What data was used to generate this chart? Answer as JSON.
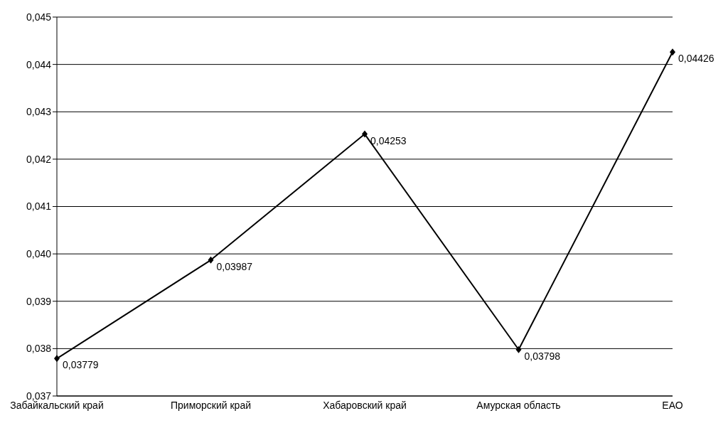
{
  "chart_data": {
    "type": "line",
    "categories": [
      "Забайкальский край",
      "Приморский край",
      "Хабаровский край",
      "Амурская область",
      "ЕАО"
    ],
    "values": [
      0.03779,
      0.03987,
      0.04253,
      0.03798,
      0.04426
    ],
    "value_labels": [
      "0,03779",
      "0,03987",
      "0,04253",
      "0,03798",
      "0,04426"
    ],
    "color": "#000000",
    "ylim": [
      0.037,
      0.045
    ],
    "yticks": [
      {
        "value": 0.037,
        "label": "0,037"
      },
      {
        "value": 0.038,
        "label": "0,038"
      },
      {
        "value": 0.039,
        "label": "0,039"
      },
      {
        "value": 0.04,
        "label": "0,040"
      },
      {
        "value": 0.041,
        "label": "0,041"
      },
      {
        "value": 0.042,
        "label": "0,042"
      },
      {
        "value": 0.043,
        "label": "0,043"
      },
      {
        "value": 0.044,
        "label": "0,044"
      },
      {
        "value": 0.045,
        "label": "0,045"
      }
    ],
    "grid": "y",
    "marker": "diamond",
    "line_style": "solid"
  }
}
